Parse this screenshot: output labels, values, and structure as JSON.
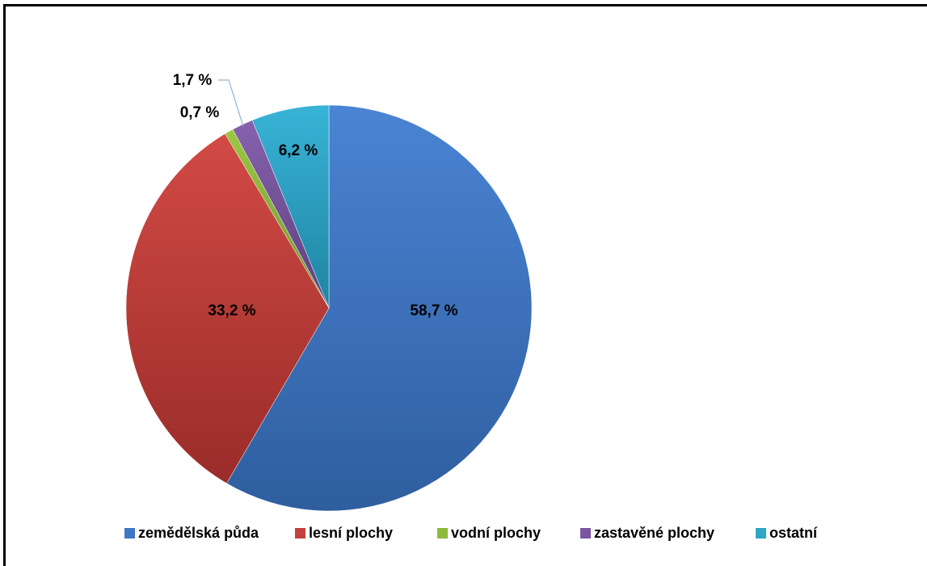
{
  "chart_data": {
    "type": "pie",
    "categories": [
      "zemědělská půda",
      "lesní plochy",
      "vodní plochy",
      "zastavěné plochy",
      "ostatní"
    ],
    "values": [
      58.7,
      33.2,
      0.7,
      1.7,
      6.2
    ],
    "labels": [
      "58,7 %",
      "33,2 %",
      "0,7 %",
      "1,7 %",
      "6,2 %"
    ],
    "colors": [
      "#3f76c4",
      "#c4403c",
      "#8fb93b",
      "#7a56a0",
      "#2fa6c8"
    ],
    "title": "",
    "legend_position": "bottom",
    "start_angle": "12 o'clock, clockwise"
  }
}
